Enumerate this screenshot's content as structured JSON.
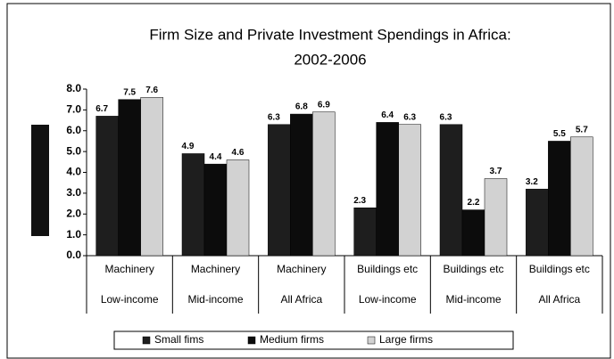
{
  "chart_data": {
    "type": "bar",
    "title": [
      "Firm Size and Private Investment Spendings in Africa:",
      "2002-2006"
    ],
    "categories": [
      [
        "Machinery",
        "Low-income"
      ],
      [
        "Machinery",
        "Mid-income"
      ],
      [
        "Machinery",
        "All Africa"
      ],
      [
        "Buildings etc",
        "Low-income"
      ],
      [
        "Buildings etc",
        "Mid-income"
      ],
      [
        "Buildings etc",
        "All Africa"
      ]
    ],
    "series": [
      {
        "name": "Small fims",
        "color": "#1e1e1e",
        "values": [
          6.7,
          4.9,
          6.3,
          2.3,
          6.3,
          3.2
        ]
      },
      {
        "name": "Medium firms",
        "color": "#0c0c0c",
        "values": [
          7.5,
          4.4,
          6.8,
          6.4,
          2.2,
          5.5
        ]
      },
      {
        "name": "Large firms",
        "color": "#d2d2d2",
        "values": [
          7.6,
          4.6,
          6.9,
          6.3,
          3.7,
          5.7
        ]
      }
    ],
    "ylim": [
      0,
      8
    ],
    "yticks": [
      {
        "value": 0,
        "label": "0.0"
      },
      {
        "value": 1,
        "label": "1.0"
      },
      {
        "value": 2,
        "label": "2.0"
      },
      {
        "value": 3,
        "label": "3.0"
      },
      {
        "value": 4,
        "label": "4.0"
      },
      {
        "value": 5,
        "label": "5.0"
      },
      {
        "value": 6,
        "label": "6.0"
      },
      {
        "value": 7,
        "label": "7.0"
      },
      {
        "value": 8,
        "label": "8.0"
      }
    ],
    "grid": false
  }
}
